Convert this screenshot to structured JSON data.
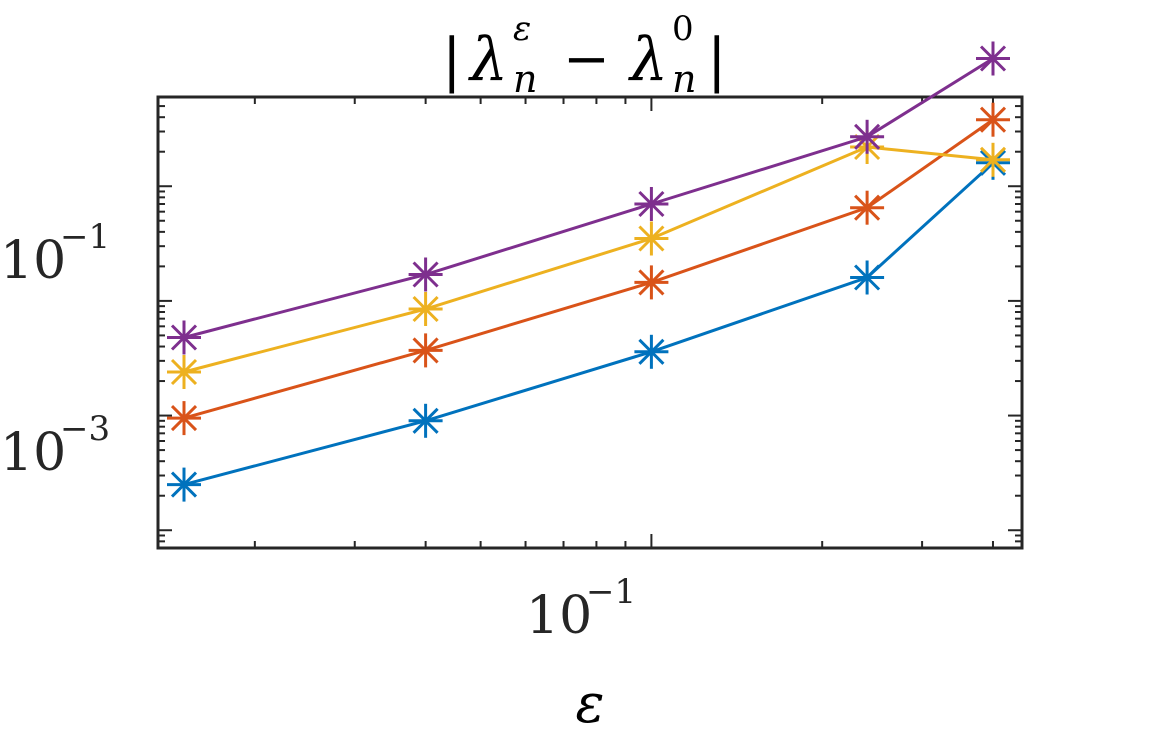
{
  "chart_data": {
    "type": "line",
    "title": "|λₙ^ε − λₙ^0|",
    "title_parts": {
      "lambda": "λ",
      "sub": "n",
      "sup_eps": "ε",
      "sup_zero": "0",
      "minus": "−",
      "bar": "|"
    },
    "xlabel": "ε",
    "x_scale": "log",
    "y_scale": "log",
    "xlim": [
      0.0135,
      0.45
    ],
    "ylim": [
      7e-05,
      0.6
    ],
    "x_tick_labels": [
      {
        "value": 0.1,
        "base": "10",
        "exp": "−1"
      }
    ],
    "y_tick_labels": [
      {
        "value": 0.1,
        "base": "10",
        "exp": "−1"
      },
      {
        "value": 0.001,
        "base": "10",
        "exp": "−3"
      }
    ],
    "marker": "asterisk",
    "grid": false,
    "legend": "none",
    "x": [
      0.015,
      0.04,
      0.1,
      0.24,
      0.4
    ],
    "series": [
      {
        "color": "#0072BD",
        "values": [
          0.00025,
          0.0009,
          0.0036,
          0.016,
          0.16
        ]
      },
      {
        "color": "#D95319",
        "values": [
          0.00095,
          0.0037,
          0.0145,
          0.065,
          0.38
        ]
      },
      {
        "color": "#EDB120",
        "values": [
          0.0024,
          0.0085,
          0.035,
          0.22,
          0.17
        ]
      },
      {
        "color": "#7E2F8E",
        "values": [
          0.0048,
          0.017,
          0.07,
          0.27,
          1.3
        ]
      }
    ]
  }
}
